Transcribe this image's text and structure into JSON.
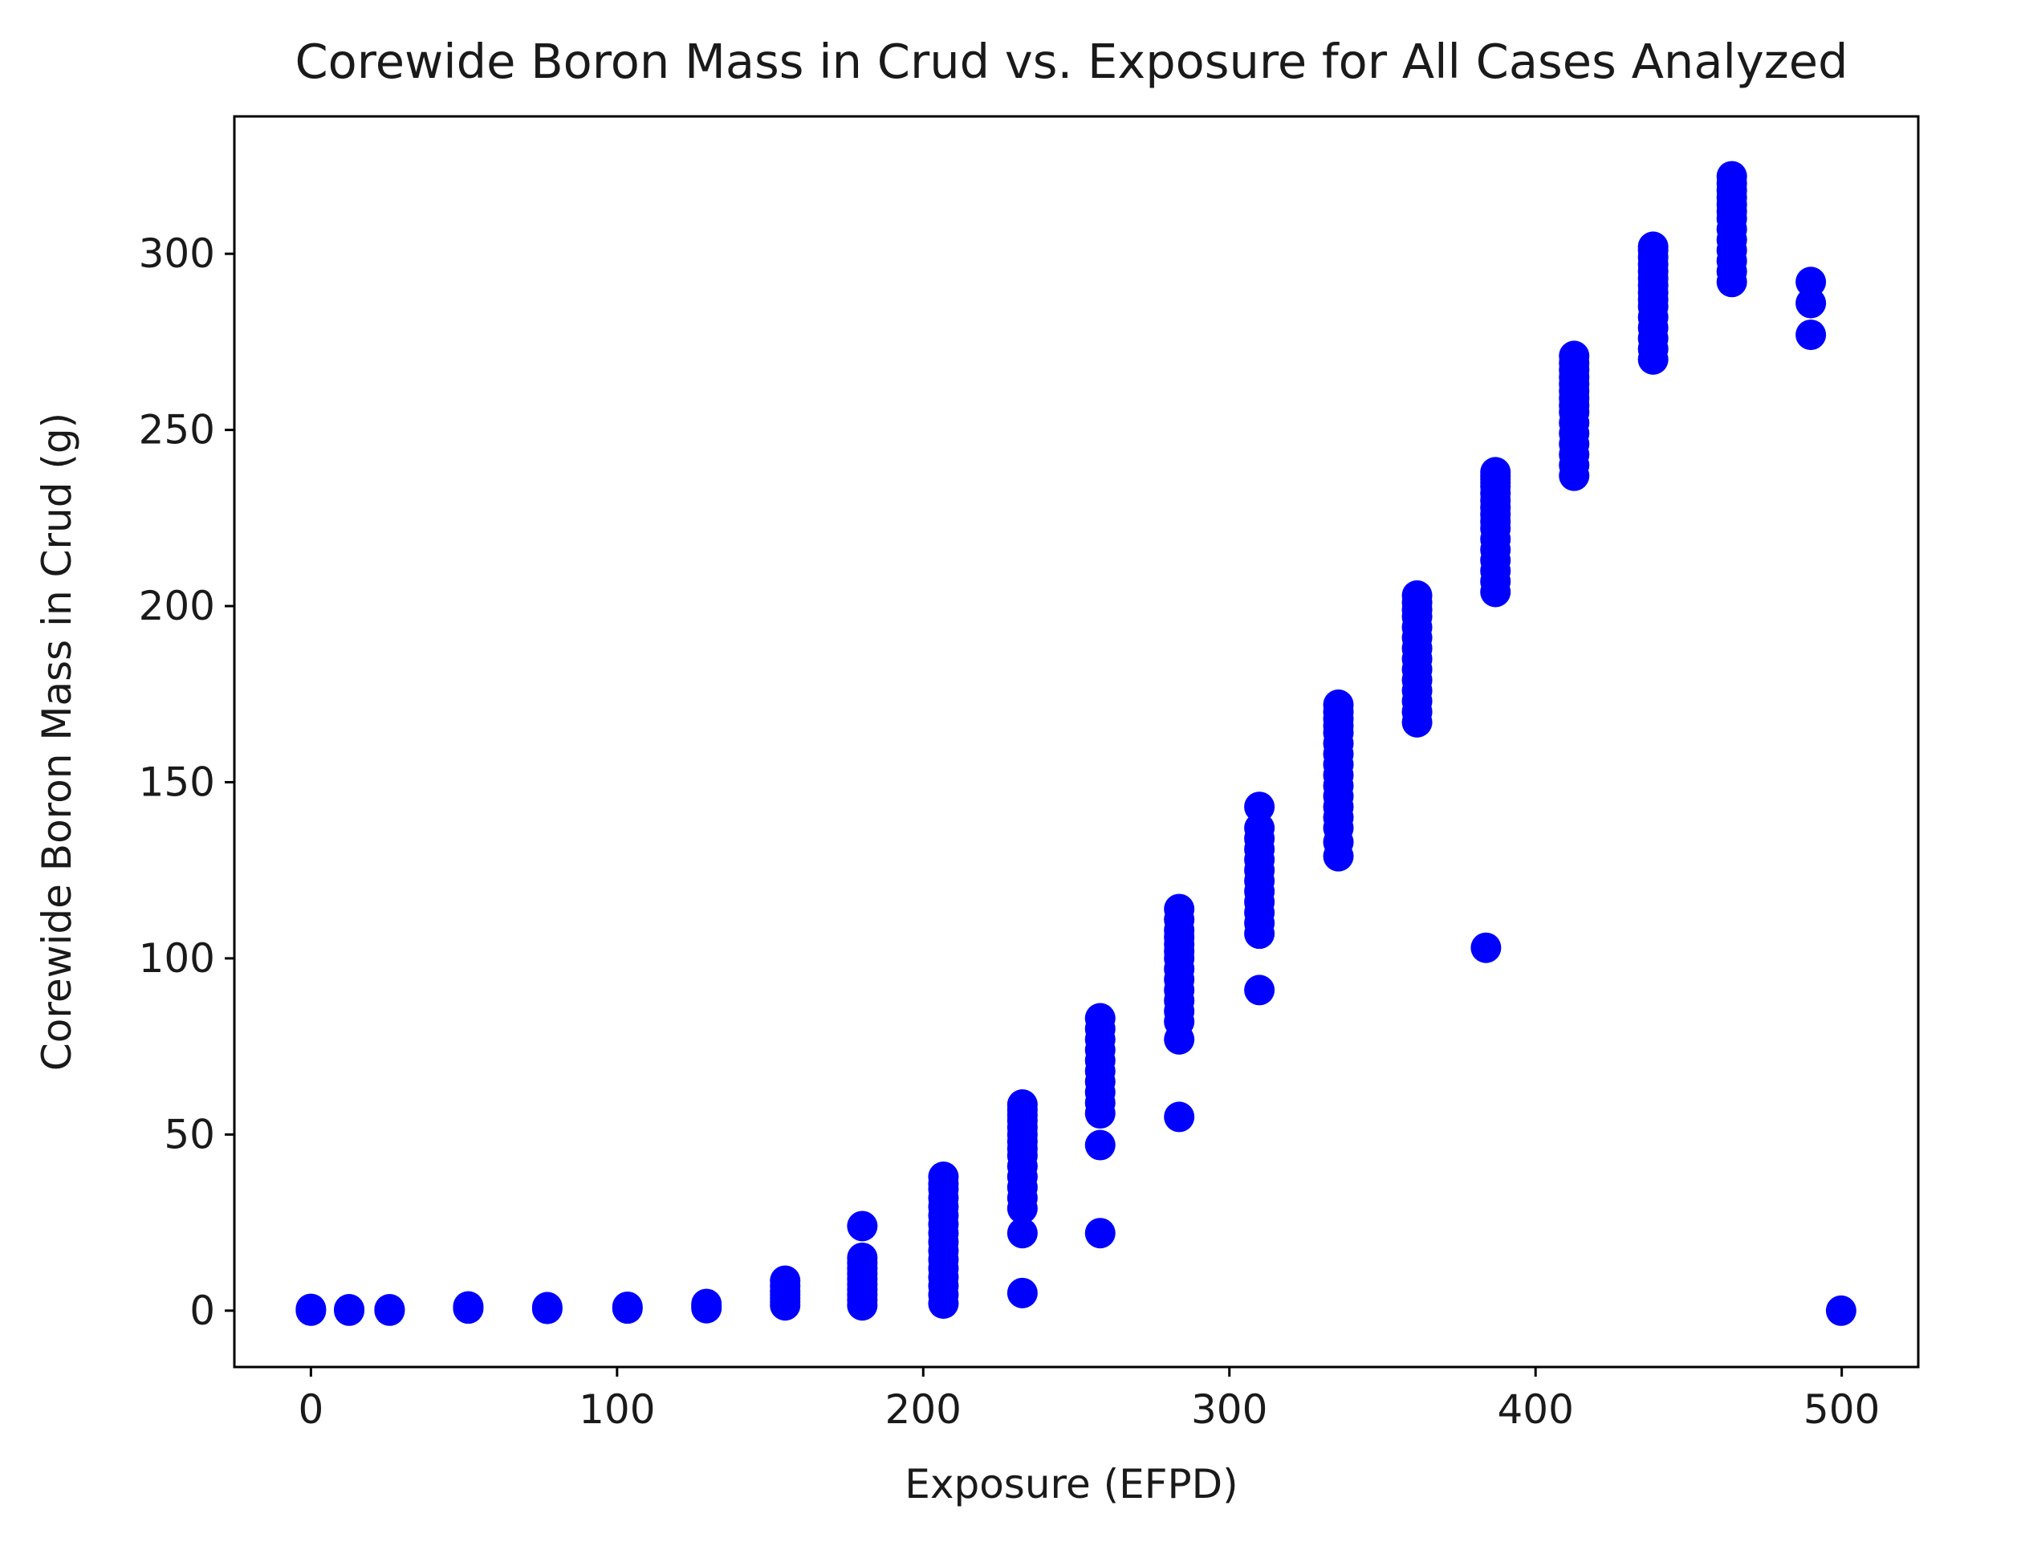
{
  "chart_data": {
    "type": "scatter",
    "title": "Corewide Boron Mass in Crud vs. Exposure for All Cases Analyzed",
    "xlabel": "Exposure (EFPD)",
    "ylabel": "Corewide Boron Mass in Crud (g)",
    "xlim": [
      -25,
      525
    ],
    "ylim": [
      -16,
      339
    ],
    "xticks": [
      0,
      100,
      200,
      300,
      400,
      500
    ],
    "yticks": [
      0,
      50,
      100,
      150,
      200,
      250,
      300
    ],
    "grid": false,
    "marker_color": "#0000ff",
    "series": [
      {
        "x": [
          0,
          0,
          12.5,
          12.5,
          25.7,
          25.7,
          51.4,
          51.4,
          77.2,
          77.2,
          103.4,
          103.4,
          129.2,
          129.2,
          129.2,
          154.9,
          154.9,
          154.9,
          154.9,
          154.9,
          154.9,
          154.9,
          180.1,
          180.1,
          180.1,
          180.1,
          180.1,
          180.1,
          180.1,
          180.1,
          180.1,
          180.1,
          180.1,
          206.6,
          206.6,
          206.6,
          206.6,
          206.6,
          206.6,
          206.6,
          206.6,
          206.6,
          206.6,
          206.6,
          206.6,
          206.6,
          206.6,
          206.6,
          206.6,
          232.4,
          232.4,
          232.4,
          232.4,
          232.4,
          232.4,
          232.4,
          232.4,
          232.4,
          232.4,
          232.4,
          232.4,
          232.4,
          232.4,
          232.4,
          232.4,
          257.8,
          257.8,
          257.8,
          257.8,
          257.8,
          257.8,
          257.8,
          257.8,
          257.8,
          257.8,
          257.8,
          257.8,
          283.6,
          283.6,
          283.6,
          283.6,
          283.6,
          283.6,
          283.6,
          283.6,
          283.6,
          283.6,
          283.6,
          283.6,
          283.6,
          283.6,
          283.6,
          309.8,
          309.8,
          309.8,
          309.8,
          309.8,
          309.8,
          309.8,
          309.8,
          309.8,
          309.8,
          309.8,
          309.8,
          309.8,
          335.6,
          335.6,
          335.6,
          335.6,
          335.6,
          335.6,
          335.6,
          335.6,
          335.6,
          335.6,
          335.6,
          335.6,
          335.6,
          335.6,
          335.6,
          335.6,
          361.3,
          361.3,
          361.3,
          361.3,
          361.3,
          361.3,
          361.3,
          361.3,
          361.3,
          361.3,
          361.3,
          361.3,
          361.3,
          361.3,
          383.8,
          386.9,
          386.9,
          386.9,
          386.9,
          386.9,
          386.9,
          386.9,
          386.9,
          386.9,
          386.9,
          386.9,
          386.9,
          386.9,
          386.9,
          386.9,
          386.9,
          386.9,
          412.6,
          412.6,
          412.6,
          412.6,
          412.6,
          412.6,
          412.6,
          412.6,
          412.6,
          412.6,
          412.6,
          412.6,
          412.6,
          412.6,
          412.6,
          438.4,
          438.4,
          438.4,
          438.4,
          438.4,
          438.4,
          438.4,
          438.4,
          438.4,
          438.4,
          438.4,
          438.4,
          438.4,
          438.4,
          438.4,
          464.1,
          464.1,
          464.1,
          464.1,
          464.1,
          464.1,
          464.1,
          464.1,
          464.1,
          464.1,
          464.1,
          464.1,
          464.1,
          489.9,
          489.9,
          489.9,
          499.8
        ],
        "y": [
          0,
          0.5,
          0,
          0.4,
          0,
          0.4,
          0.6,
          1.2,
          0.5,
          1.0,
          0.6,
          1.1,
          0.7,
          1.3,
          1.9,
          1.5,
          2.5,
          3.5,
          4.5,
          5.5,
          7.0,
          8.5,
          1.5,
          3,
          4.5,
          6,
          7.5,
          9,
          10.5,
          12,
          13.5,
          15,
          24,
          2,
          4.5,
          7,
          9.5,
          12,
          14.5,
          17,
          19.5,
          22,
          24.5,
          27,
          29.5,
          32,
          34.5,
          36,
          38,
          5,
          22,
          29,
          32,
          35,
          38,
          41,
          44,
          46,
          48,
          50,
          52,
          54,
          55.5,
          57,
          58.5,
          22,
          47,
          56,
          59,
          62,
          65,
          68,
          71,
          74,
          77,
          80,
          83,
          55,
          77,
          82,
          85,
          88,
          91,
          94,
          97,
          100,
          102,
          104,
          106,
          108,
          111,
          114,
          91,
          107,
          110,
          113,
          116,
          119,
          122,
          125,
          128,
          131,
          134,
          137,
          143,
          129,
          133,
          137,
          140,
          143,
          146,
          149,
          152,
          155,
          158,
          161,
          164,
          166,
          168,
          170,
          172,
          167,
          170,
          173,
          176,
          179,
          182,
          185,
          188,
          191,
          194,
          197,
          199,
          201,
          203,
          103,
          204,
          207,
          210,
          213,
          216,
          219,
          222,
          224,
          226,
          228,
          230,
          232,
          234,
          235,
          236,
          237,
          238,
          237,
          240,
          243,
          246,
          249,
          252,
          255,
          257,
          259,
          261,
          263,
          265,
          267,
          269,
          271,
          270,
          273,
          276,
          279,
          282,
          285,
          287,
          289,
          291,
          293,
          295,
          297,
          299,
          301,
          302,
          292,
          295,
          298,
          301,
          304,
          307,
          310,
          312,
          314,
          316,
          318,
          320,
          322,
          277,
          286,
          292,
          0
        ]
      }
    ]
  }
}
